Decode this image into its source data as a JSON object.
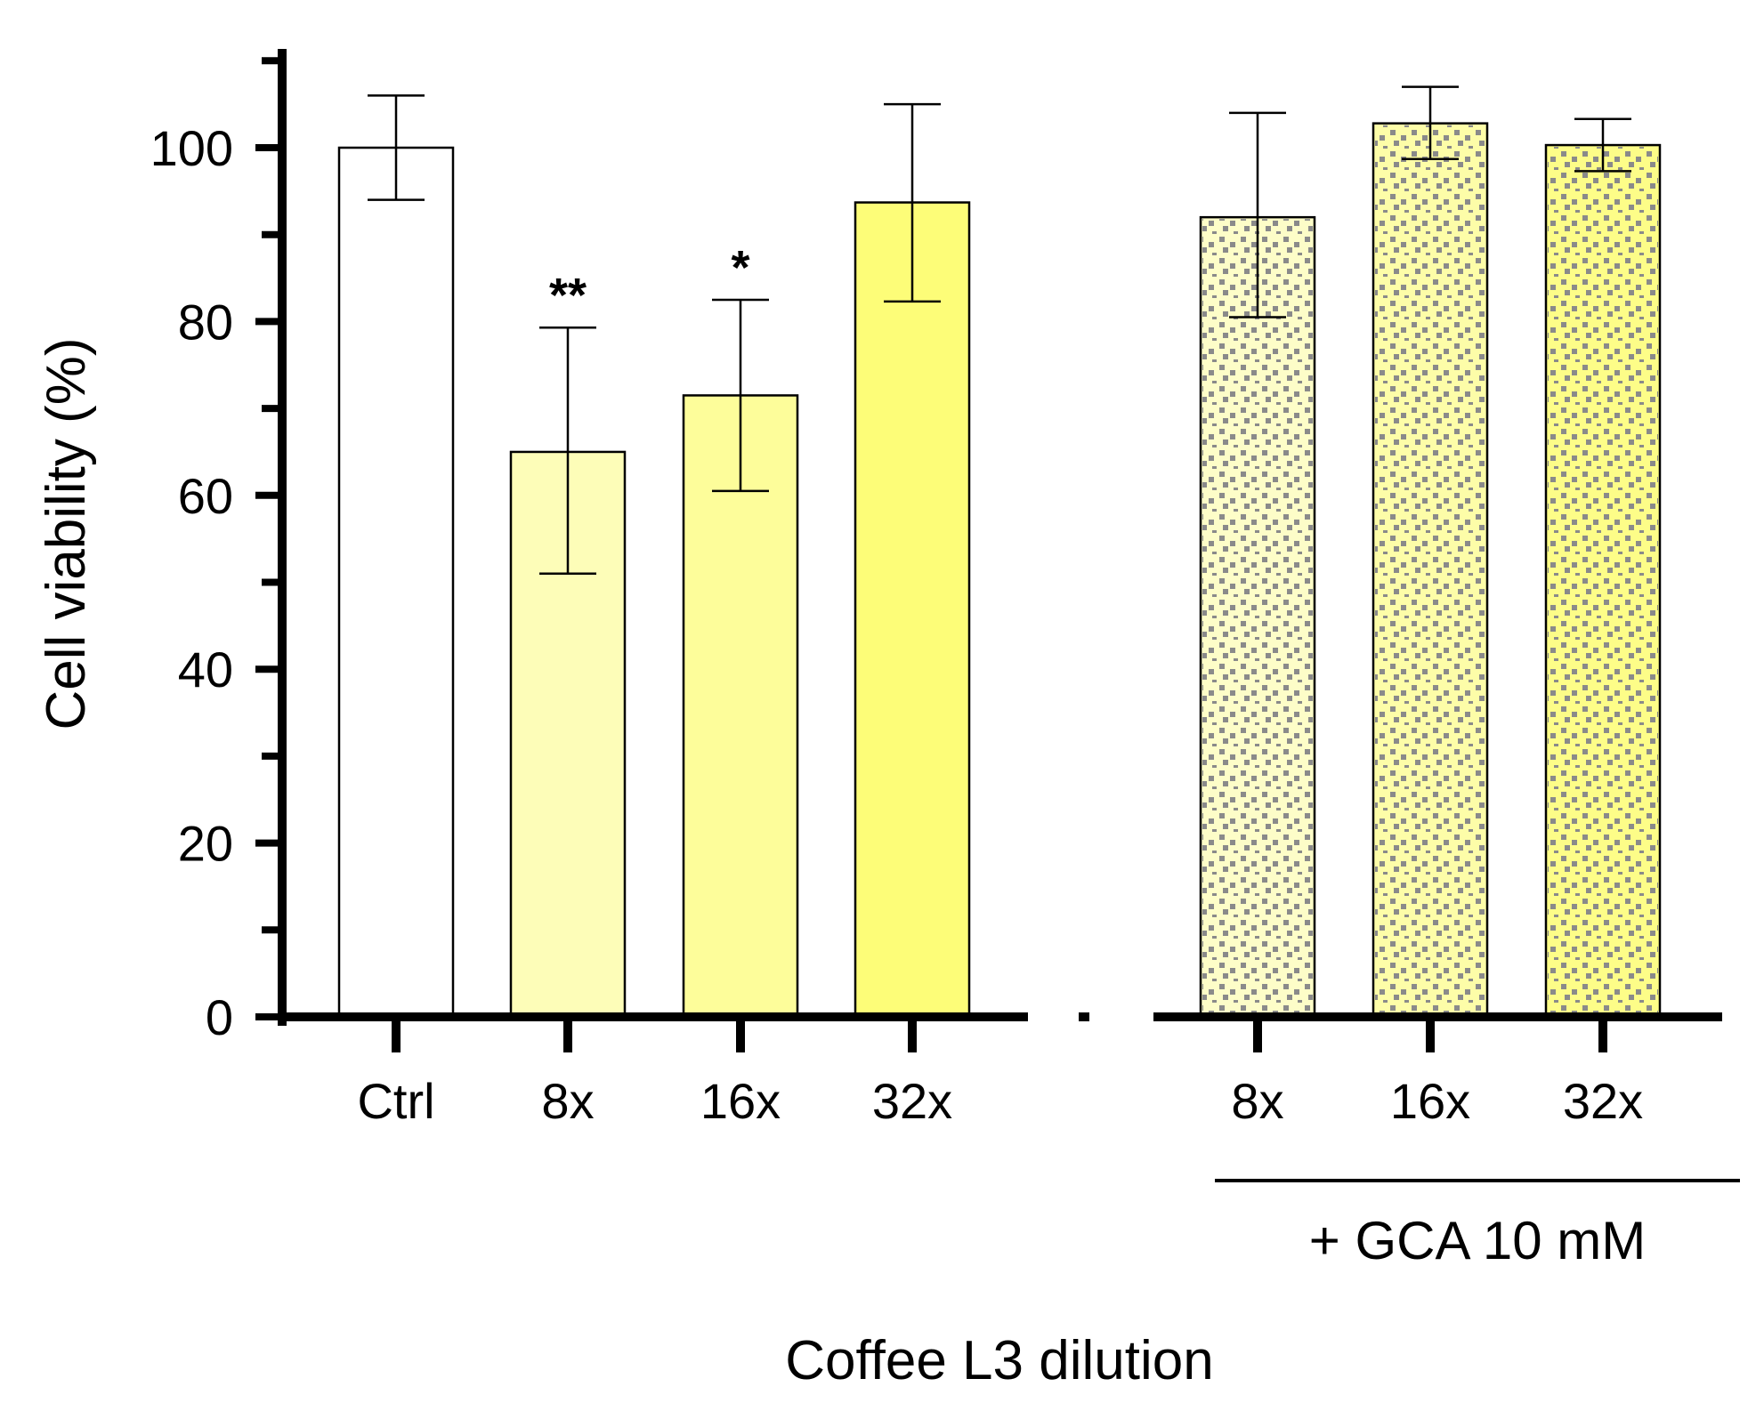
{
  "chart_data": {
    "type": "bar",
    "title": "",
    "xlabel": "Coffee L3 dilution",
    "ylabel": "Cell viability (%)",
    "ylim": [
      0,
      110
    ],
    "yticks_major": [
      0,
      20,
      40,
      60,
      80,
      100
    ],
    "yticks_minor": [
      10,
      30,
      50,
      70,
      90,
      110
    ],
    "grid": false,
    "categories": [
      "Ctrl",
      "8x",
      "16x",
      "32x",
      "8x",
      "16x",
      "32x"
    ],
    "bars": [
      {
        "label": "Ctrl",
        "group": "none",
        "value": 100.0,
        "err_low": 94.0,
        "err_high": 106.0,
        "fill": "#ffffff",
        "pattern": false,
        "significance": ""
      },
      {
        "label": "8x",
        "group": "none",
        "value": 65.0,
        "err_low": 51.0,
        "err_high": 79.3,
        "fill": "#fdfdb8",
        "pattern": false,
        "significance": "**"
      },
      {
        "label": "16x",
        "group": "none",
        "value": 71.5,
        "err_low": 60.5,
        "err_high": 82.5,
        "fill": "#fdfd9a",
        "pattern": false,
        "significance": "*"
      },
      {
        "label": "32x",
        "group": "none",
        "value": 93.7,
        "err_low": 82.3,
        "err_high": 105.0,
        "fill": "#fdfd78",
        "pattern": false,
        "significance": ""
      },
      {
        "label": "8x",
        "group": "gca",
        "value": 92.0,
        "err_low": 80.5,
        "err_high": 104.0,
        "fill": "#fdfdc8",
        "pattern": true,
        "significance": ""
      },
      {
        "label": "16x",
        "group": "gca",
        "value": 102.8,
        "err_low": 98.7,
        "err_high": 107.0,
        "fill": "#fdfda8",
        "pattern": true,
        "significance": ""
      },
      {
        "label": "32x",
        "group": "gca",
        "value": 100.3,
        "err_low": 97.3,
        "err_high": 103.3,
        "fill": "#fdfd88",
        "pattern": true,
        "significance": ""
      }
    ],
    "group_annotation": "+ GCA 10 mM",
    "colors": {
      "axis": "#000000",
      "pattern_dots": "#8a8a8a"
    }
  }
}
